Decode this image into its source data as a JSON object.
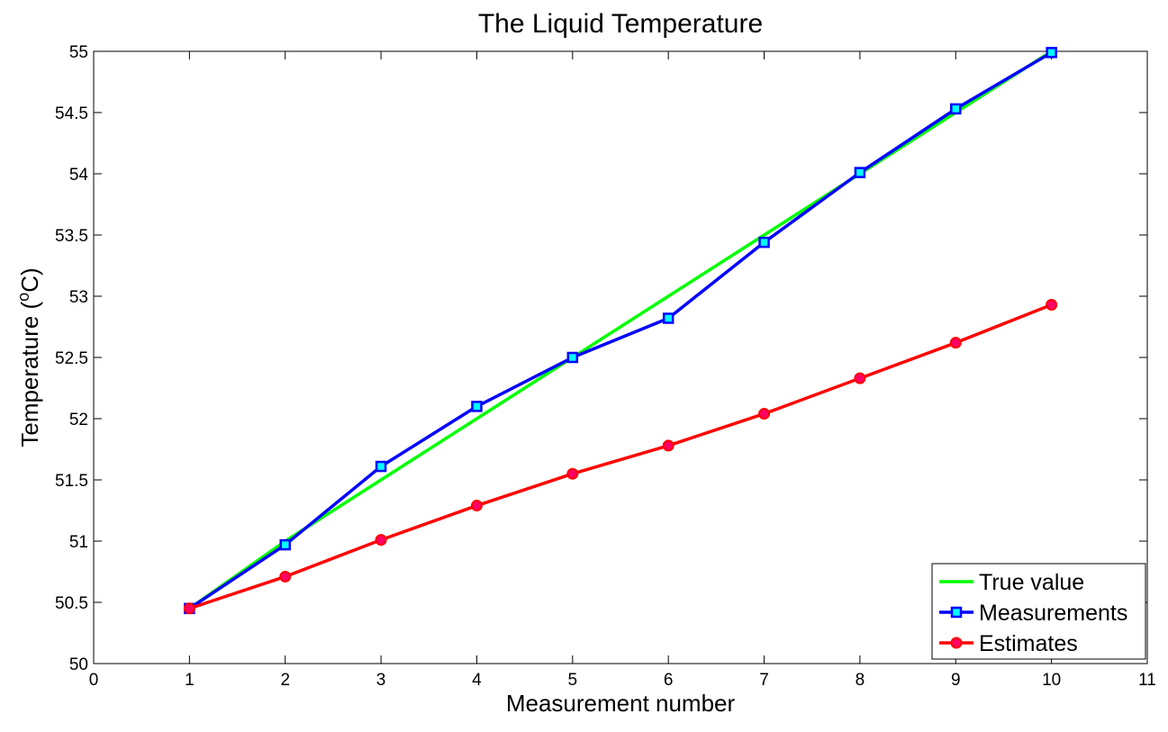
{
  "chart_data": {
    "type": "line",
    "title": "The Liquid  Temperature",
    "xlabel": "Measurement number",
    "ylabel_main": "Temperature (",
    "ylabel_sup": "o",
    "ylabel_tail": "C)",
    "xlim": [
      0,
      11
    ],
    "ylim": [
      50,
      55
    ],
    "xticks": [
      "0",
      "1",
      "2",
      "3",
      "4",
      "5",
      "6",
      "7",
      "8",
      "9",
      "10",
      "11"
    ],
    "yticks": [
      "50",
      "50.5",
      "51",
      "51.5",
      "52",
      "52.5",
      "53",
      "53.5",
      "54",
      "54.5",
      "55"
    ],
    "grid": false,
    "legend_position": "bottom-right",
    "x": [
      1,
      2,
      3,
      4,
      5,
      6,
      7,
      8,
      9,
      10
    ],
    "series": [
      {
        "name": "True value",
        "color": "#00ff00",
        "marker": "none",
        "values": [
          50.45,
          51.0,
          51.5,
          52.0,
          52.5,
          53.0,
          53.5,
          54.0,
          54.5,
          55.0
        ]
      },
      {
        "name": "Measurements",
        "color": "#0000ff",
        "marker": "square",
        "marker_fill": "#00ffff",
        "values": [
          50.45,
          50.97,
          51.61,
          52.1,
          52.5,
          52.82,
          53.44,
          54.01,
          54.53,
          54.99
        ]
      },
      {
        "name": "Estimates",
        "color": "#ff0000",
        "marker": "circle",
        "marker_fill": "#ff0066",
        "values": [
          50.45,
          50.71,
          51.01,
          51.29,
          51.55,
          51.78,
          52.04,
          52.33,
          52.62,
          52.93
        ]
      }
    ]
  }
}
